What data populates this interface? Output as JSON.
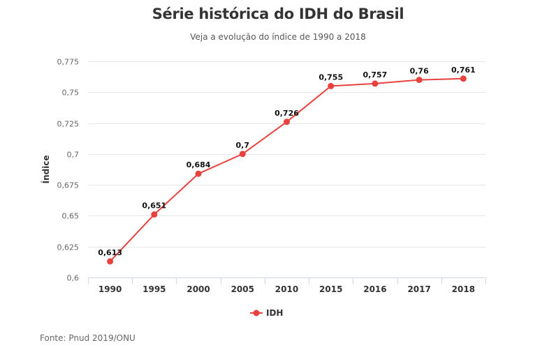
{
  "header": {
    "title": "Série histórica do IDH do Brasil",
    "subtitle": "Veja a evolução do índice de 1990 a 2018"
  },
  "footer": {
    "source": "Fonte: Pnud 2019/ONU"
  },
  "chart_data": {
    "type": "line",
    "title": "Série histórica do IDH do Brasil",
    "subtitle": "Veja a evolução do índice de 1990 a 2018",
    "xlabel": "",
    "ylabel": "Índice",
    "categories": [
      "1990",
      "1995",
      "2000",
      "2005",
      "2010",
      "2015",
      "2016",
      "2017",
      "2018"
    ],
    "series": [
      {
        "name": "IDH",
        "color": "#e8413e",
        "values": [
          0.613,
          0.651,
          0.684,
          0.7,
          0.726,
          0.755,
          0.757,
          0.76,
          0.761
        ],
        "labels": [
          "0,613",
          "0,651",
          "0,684",
          "0,7",
          "0,726",
          "0,755",
          "0,757",
          "0,76",
          "0,761"
        ]
      }
    ],
    "ylim": [
      0.6,
      0.775
    ],
    "yticks": [
      0.6,
      0.625,
      0.65,
      0.675,
      0.7,
      0.725,
      0.75,
      0.775
    ],
    "ytick_labels": [
      "0,6",
      "0,625",
      "0,65",
      "0,675",
      "0,7",
      "0,725",
      "0,75",
      "0,775"
    ],
    "grid": true,
    "legend": "bottom-center",
    "source": "Fonte: Pnud 2019/ONU"
  }
}
